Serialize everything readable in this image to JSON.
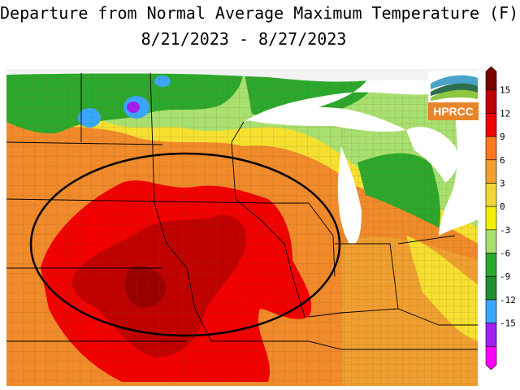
{
  "title_line1": "Departure from Normal Average Maximum Temperature (F)",
  "title_line2": "8/21/2023 - 8/27/2023",
  "logo": {
    "text": "HPRCC",
    "icon": "hprcc-logo-icon"
  },
  "legend": {
    "labels": [
      "15",
      "12",
      "9",
      "6",
      "3",
      "0",
      "-3",
      "-6",
      "-9",
      "-12",
      "-15"
    ],
    "colors": [
      "#7a0000",
      "#c00000",
      "#f00000",
      "#ff7a1e",
      "#f0a030",
      "#f5d535",
      "#f5f000",
      "#a8e070",
      "#2ca82c",
      "#1f8f2f",
      "#3aa6ff",
      "#a020f0",
      "#ff00ff"
    ]
  },
  "colors": {
    "lake": "#ffffff",
    "land_out": "#f3f3f3",
    "county_lines": "#7a5030",
    "state_lines": "#000000",
    "highlight_ellipse": "#000000"
  }
}
